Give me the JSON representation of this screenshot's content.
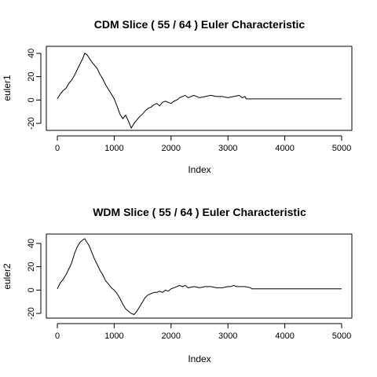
{
  "chart_data": [
    {
      "type": "line",
      "title": "CDM Slice ( 55 / 64 ) Euler Characteristic",
      "xlabel": "Index",
      "ylabel": "euler1",
      "xlim": [
        0,
        5000
      ],
      "ylim": [
        -26,
        46
      ],
      "xticks": [
        0,
        1000,
        2000,
        3000,
        4000,
        5000
      ],
      "yticks": [
        -20,
        0,
        20,
        40
      ],
      "grid": false,
      "series": [
        {
          "color": "#000000",
          "x": [
            0,
            50,
            100,
            150,
            200,
            250,
            300,
            350,
            400,
            450,
            480,
            520,
            560,
            600,
            650,
            700,
            750,
            800,
            850,
            900,
            950,
            1000,
            1050,
            1100,
            1150,
            1200,
            1250,
            1300,
            1350,
            1400,
            1450,
            1500,
            1550,
            1600,
            1650,
            1700,
            1750,
            1800,
            1850,
            1900,
            1950,
            2000,
            2050,
            2100,
            2150,
            2200,
            2250,
            2300,
            2350,
            2400,
            2450,
            2500,
            2600,
            2700,
            2800,
            2900,
            3000,
            3100,
            3200,
            3250,
            3300,
            3320,
            3500,
            4000,
            4500,
            5000
          ],
          "values": [
            1,
            5,
            8,
            10,
            14,
            17,
            21,
            26,
            31,
            36,
            40,
            39,
            36,
            33,
            30,
            27,
            22,
            18,
            13,
            9,
            5,
            1,
            -5,
            -12,
            -16,
            -13,
            -18,
            -24,
            -20,
            -17,
            -14,
            -12,
            -9,
            -7,
            -6,
            -4,
            -3,
            -5,
            -2,
            -1,
            -2,
            -3,
            -1,
            0,
            2,
            3,
            4,
            2,
            3,
            4,
            3,
            2,
            3,
            4,
            3,
            3,
            2,
            3,
            4,
            2,
            3,
            1,
            1,
            1,
            1,
            1
          ]
        }
      ]
    },
    {
      "type": "line",
      "title": "WDM Slice ( 55 / 64 ) Euler Characteristic",
      "xlabel": "Index",
      "ylabel": "euler2",
      "xlim": [
        0,
        5000
      ],
      "ylim": [
        -24,
        48
      ],
      "xticks": [
        0,
        1000,
        2000,
        3000,
        4000,
        5000
      ],
      "yticks": [
        -20,
        0,
        20,
        40
      ],
      "grid": false,
      "series": [
        {
          "color": "#000000",
          "x": [
            0,
            50,
            100,
            150,
            200,
            250,
            300,
            350,
            400,
            450,
            480,
            520,
            560,
            600,
            650,
            700,
            750,
            800,
            850,
            900,
            950,
            1000,
            1050,
            1100,
            1150,
            1200,
            1250,
            1300,
            1350,
            1400,
            1450,
            1500,
            1550,
            1600,
            1650,
            1700,
            1750,
            1800,
            1850,
            1900,
            1950,
            2000,
            2050,
            2100,
            2150,
            2200,
            2250,
            2300,
            2400,
            2500,
            2600,
            2700,
            2800,
            2900,
            3000,
            3050,
            3100,
            3150,
            3200,
            3300,
            3400,
            3420,
            3600,
            4000,
            4500,
            5000
          ],
          "values": [
            1,
            6,
            9,
            13,
            18,
            23,
            31,
            37,
            41,
            43,
            44,
            41,
            38,
            33,
            27,
            22,
            17,
            13,
            8,
            5,
            2,
            0,
            -3,
            -7,
            -12,
            -16,
            -18,
            -20,
            -21,
            -18,
            -14,
            -10,
            -6,
            -4,
            -3,
            -2,
            -2,
            -1,
            -2,
            0,
            -1,
            1,
            2,
            3,
            4,
            3,
            4,
            2,
            3,
            2,
            3,
            3,
            2,
            2,
            3,
            3,
            4,
            3,
            3,
            3,
            2,
            1,
            1,
            1,
            1,
            1
          ]
        }
      ]
    }
  ]
}
